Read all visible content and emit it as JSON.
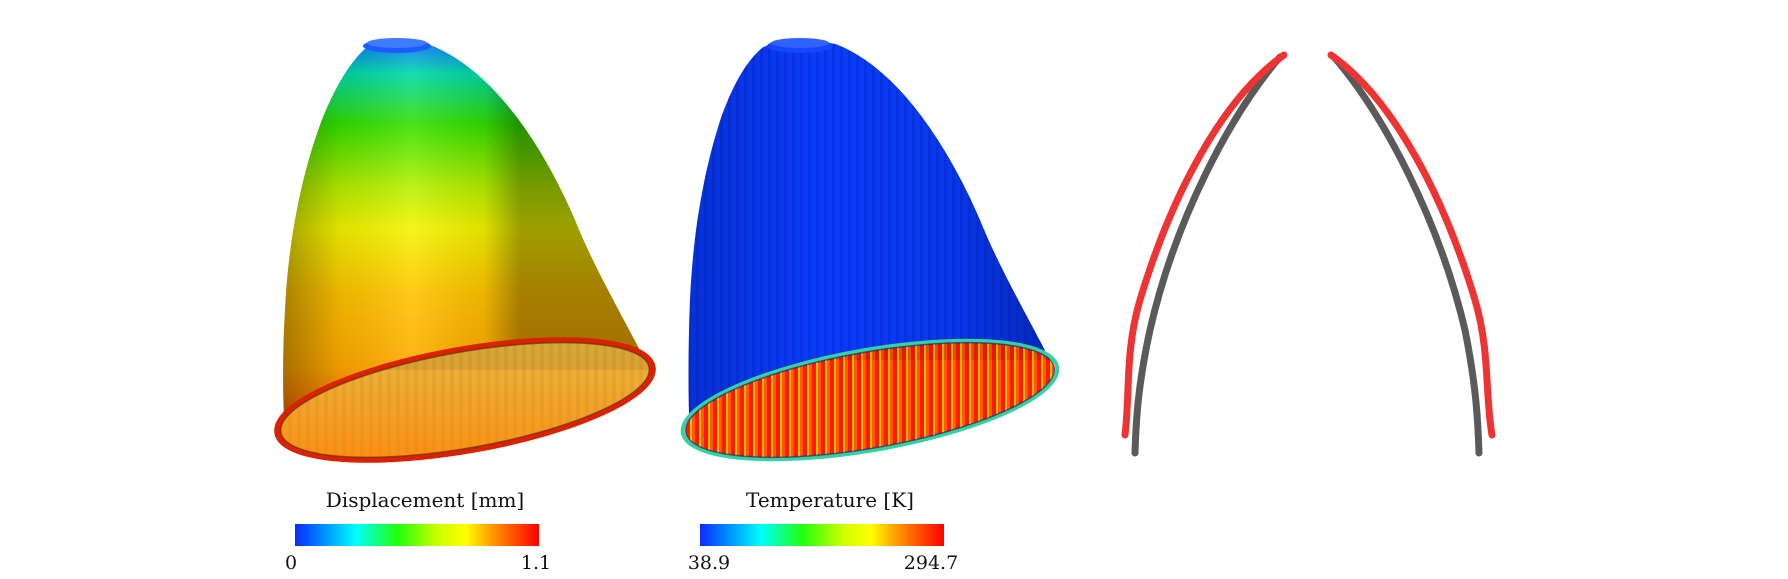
{
  "panels": {
    "displacement": {
      "title": "Displacement [mm]",
      "min_label": "0",
      "max_label": "1.1",
      "colormap": [
        "#0a2cff",
        "#00c8ff",
        "#00ffff",
        "#21ff0c",
        "#c8ff00",
        "#ffff00",
        "#ffa000",
        "#ff4e00",
        "#ff0000"
      ]
    },
    "temperature": {
      "title": "Temperature [K]",
      "min_label": "38.9",
      "max_label": "294.7",
      "colormap": [
        "#0a2cff",
        "#00c8ff",
        "#00ffff",
        "#21ff0c",
        "#c8ff00",
        "#ffff00",
        "#ffa000",
        "#ff4e00",
        "#ff0000"
      ]
    },
    "profile": {
      "deformed_color": "#ee3333",
      "reference_color": "#5a5a5a"
    }
  }
}
